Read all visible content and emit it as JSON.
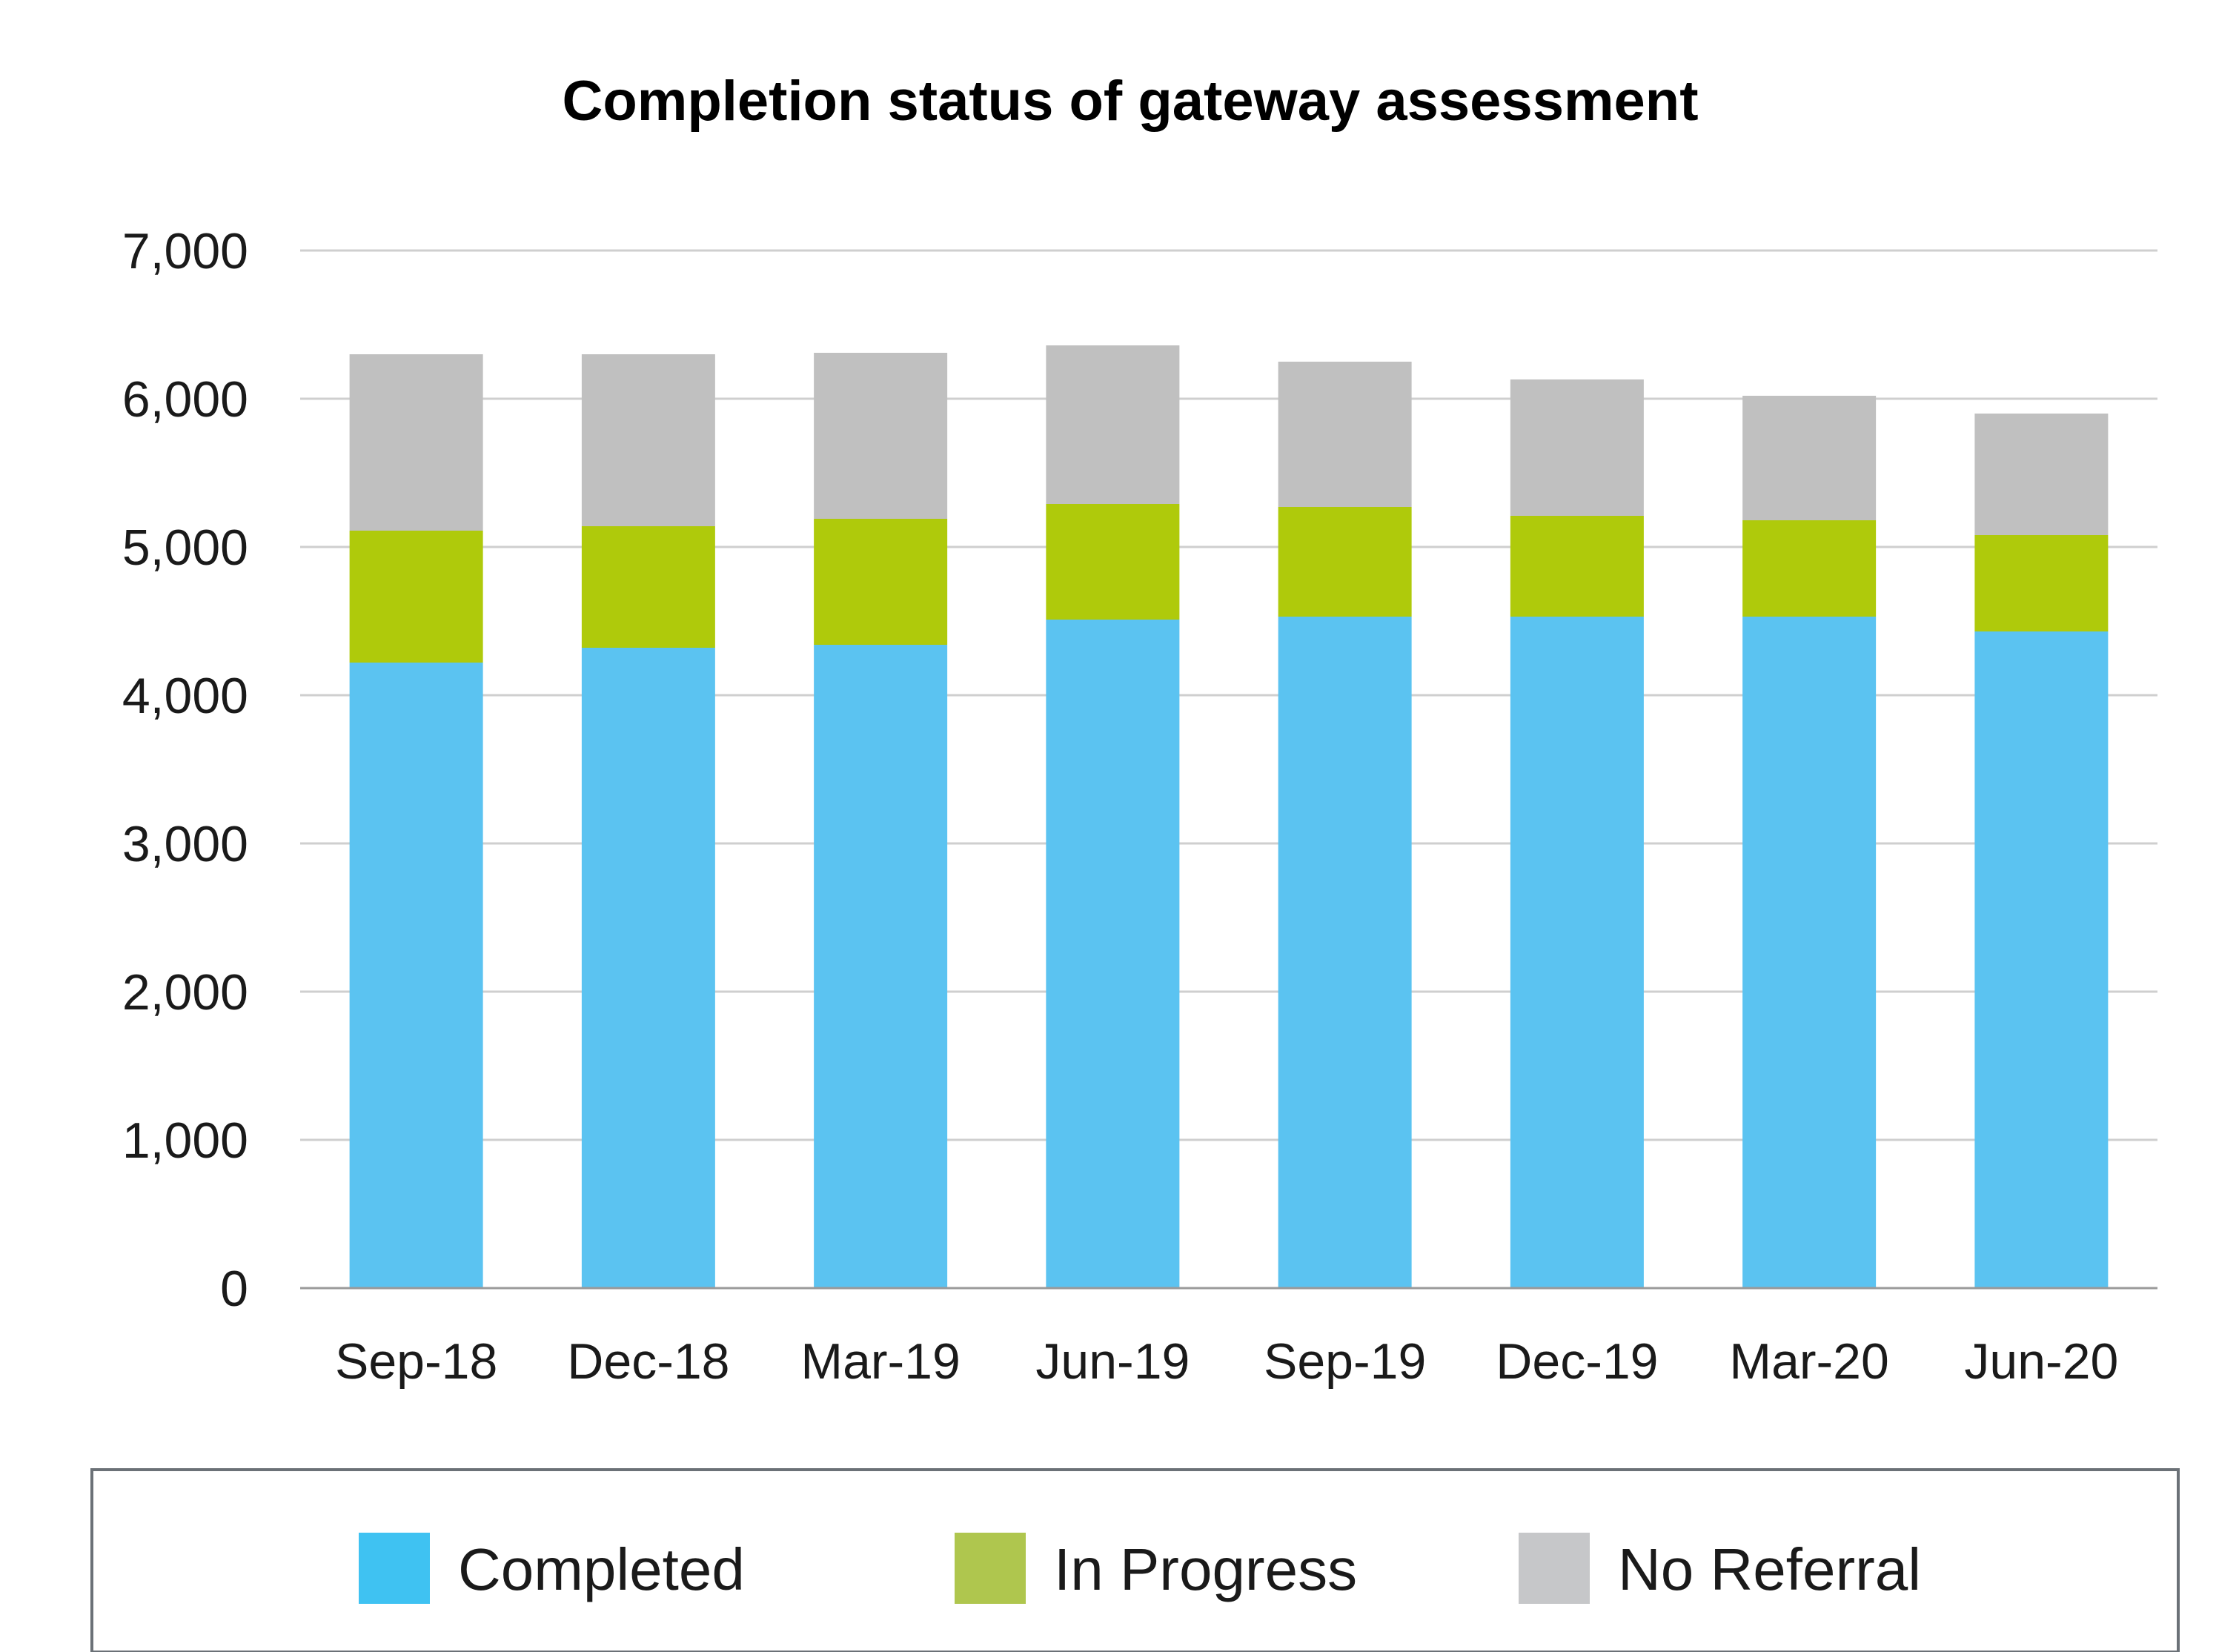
{
  "chart_data": {
    "type": "bar",
    "stacked": true,
    "title": "Completion status of gateway assessment",
    "xlabel": "",
    "ylabel": "",
    "ylim": [
      0,
      7000
    ],
    "yticks": [
      0,
      1000,
      2000,
      3000,
      4000,
      5000,
      6000,
      7000
    ],
    "ytick_labels": [
      "0",
      "1,000",
      "2,000",
      "3,000",
      "4,000",
      "5,000",
      "6,000",
      "7,000"
    ],
    "categories": [
      "Sep-18",
      "Dec-18",
      "Mar-19",
      "Jun-19",
      "Sep-19",
      "Dec-19",
      "Mar-20",
      "Jun-20"
    ],
    "grid": true,
    "legend_position": "bottom",
    "series": [
      {
        "name": "Completed",
        "color": "#5BC3F1",
        "legend_color": "#3FC2F2",
        "values": [
          4220,
          4320,
          4340,
          4510,
          4530,
          4530,
          4530,
          4430
        ]
      },
      {
        "name": "In Progress",
        "color": "#AFCA0B",
        "legend_color": "#AFC64E",
        "values": [
          890,
          820,
          850,
          780,
          740,
          680,
          650,
          650
        ]
      },
      {
        "name": "No Referral",
        "color": "#C0C0C0",
        "legend_color": "#C6C7C9",
        "values": [
          1190,
          1160,
          1120,
          1070,
          980,
          920,
          840,
          820
        ]
      }
    ]
  }
}
